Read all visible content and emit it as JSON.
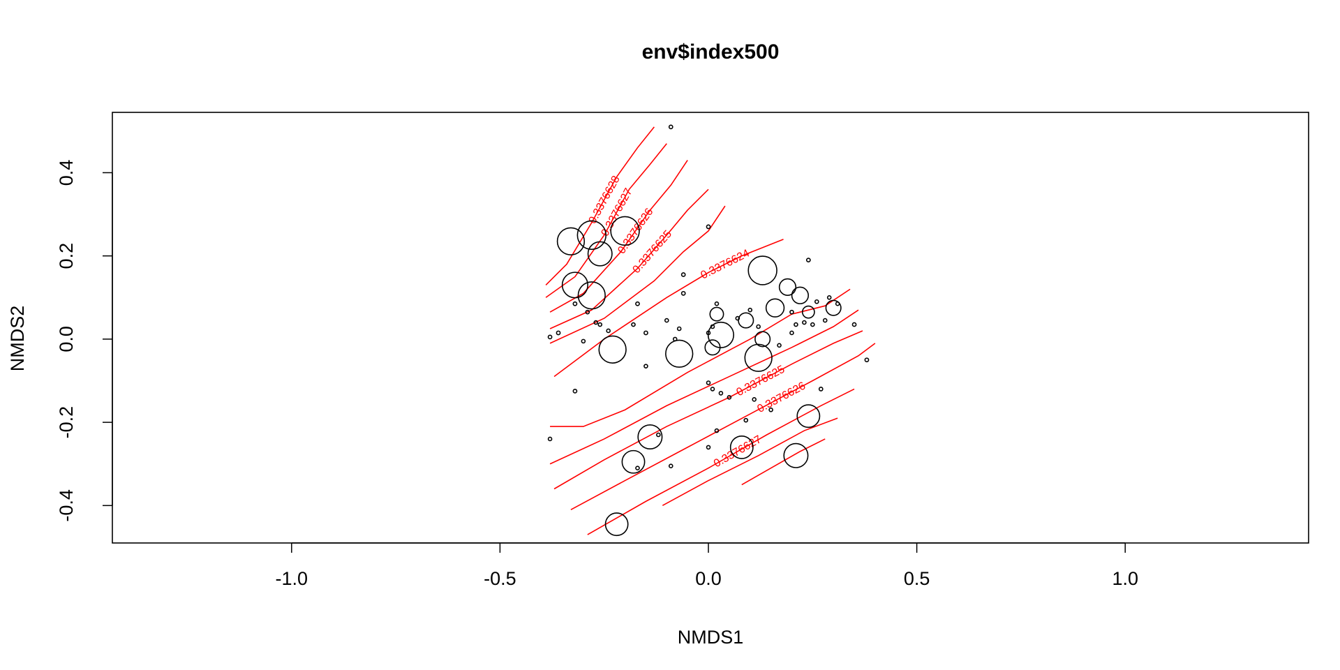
{
  "chart_data": {
    "type": "scatter",
    "title": "env$index500",
    "xlabel": "NMDS1",
    "ylabel": "NMDS2",
    "xlim": [
      -1.43,
      1.44
    ],
    "ylim": [
      -0.49,
      0.545
    ],
    "xticks": [
      -1.0,
      -0.5,
      0.0,
      0.5,
      1.0
    ],
    "xtick_labels": [
      "-1.0",
      "-0.5",
      "0.0",
      "0.5",
      "1.0"
    ],
    "yticks": [
      -0.4,
      -0.2,
      0.0,
      0.2,
      0.4
    ],
    "ytick_labels": [
      "-0.4",
      "-0.2",
      "0.0",
      "0.2",
      "0.4"
    ],
    "grid": false,
    "legend": "none",
    "colors": {
      "points": "#000000",
      "contours": "#ff0000",
      "frame": "#000000"
    },
    "points": [
      {
        "x": -0.33,
        "y": 0.235,
        "size": 0.9
      },
      {
        "x": -0.28,
        "y": 0.25,
        "size": 0.95
      },
      {
        "x": -0.2,
        "y": 0.26,
        "size": 0.95
      },
      {
        "x": -0.26,
        "y": 0.205,
        "size": 0.8
      },
      {
        "x": -0.32,
        "y": 0.13,
        "size": 0.85
      },
      {
        "x": -0.28,
        "y": 0.105,
        "size": 0.9
      },
      {
        "x": -0.23,
        "y": -0.025,
        "size": 0.9
      },
      {
        "x": -0.07,
        "y": -0.035,
        "size": 0.9
      },
      {
        "x": 0.02,
        "y": 0.06,
        "size": 0.45
      },
      {
        "x": 0.03,
        "y": 0.01,
        "size": 0.85
      },
      {
        "x": 0.01,
        "y": -0.02,
        "size": 0.5
      },
      {
        "x": 0.09,
        "y": 0.045,
        "size": 0.5
      },
      {
        "x": 0.13,
        "y": 0.165,
        "size": 0.95
      },
      {
        "x": 0.16,
        "y": 0.075,
        "size": 0.6
      },
      {
        "x": 0.19,
        "y": 0.125,
        "size": 0.55
      },
      {
        "x": 0.22,
        "y": 0.105,
        "size": 0.55
      },
      {
        "x": 0.3,
        "y": 0.075,
        "size": 0.5
      },
      {
        "x": 0.12,
        "y": -0.045,
        "size": 0.9
      },
      {
        "x": 0.13,
        "y": 0.0,
        "size": 0.5
      },
      {
        "x": 0.24,
        "y": 0.065,
        "size": 0.4
      },
      {
        "x": -0.14,
        "y": -0.235,
        "size": 0.8
      },
      {
        "x": -0.18,
        "y": -0.295,
        "size": 0.75
      },
      {
        "x": -0.22,
        "y": -0.445,
        "size": 0.75
      },
      {
        "x": 0.08,
        "y": -0.26,
        "size": 0.75
      },
      {
        "x": 0.21,
        "y": -0.28,
        "size": 0.8
      },
      {
        "x": 0.24,
        "y": -0.185,
        "size": 0.75
      },
      {
        "x": -0.09,
        "y": 0.51,
        "size": 0.12
      },
      {
        "x": 0.0,
        "y": 0.27,
        "size": 0.12
      },
      {
        "x": 0.24,
        "y": 0.19,
        "size": 0.12
      },
      {
        "x": -0.06,
        "y": 0.155,
        "size": 0.12
      },
      {
        "x": -0.06,
        "y": 0.11,
        "size": 0.12
      },
      {
        "x": -0.17,
        "y": 0.085,
        "size": 0.12
      },
      {
        "x": -0.32,
        "y": 0.085,
        "size": 0.12
      },
      {
        "x": -0.29,
        "y": 0.065,
        "size": 0.1
      },
      {
        "x": -0.36,
        "y": 0.015,
        "size": 0.12
      },
      {
        "x": -0.38,
        "y": 0.005,
        "size": 0.12
      },
      {
        "x": -0.26,
        "y": 0.035,
        "size": 0.1
      },
      {
        "x": -0.27,
        "y": 0.04,
        "size": 0.1
      },
      {
        "x": -0.3,
        "y": -0.005,
        "size": 0.08
      },
      {
        "x": -0.24,
        "y": 0.02,
        "size": 0.1
      },
      {
        "x": -0.18,
        "y": 0.035,
        "size": 0.1
      },
      {
        "x": -0.15,
        "y": 0.015,
        "size": 0.12
      },
      {
        "x": -0.1,
        "y": 0.045,
        "size": 0.1
      },
      {
        "x": -0.07,
        "y": 0.025,
        "size": 0.08
      },
      {
        "x": -0.08,
        "y": 0.0,
        "size": 0.1
      },
      {
        "x": -0.15,
        "y": -0.065,
        "size": 0.1
      },
      {
        "x": -0.32,
        "y": -0.125,
        "size": 0.12
      },
      {
        "x": -0.38,
        "y": -0.24,
        "size": 0.06
      },
      {
        "x": 0.02,
        "y": 0.085,
        "size": 0.1
      },
      {
        "x": 0.01,
        "y": 0.03,
        "size": 0.1
      },
      {
        "x": 0.0,
        "y": 0.015,
        "size": 0.08
      },
      {
        "x": 0.1,
        "y": 0.07,
        "size": 0.1
      },
      {
        "x": 0.07,
        "y": 0.05,
        "size": 0.1
      },
      {
        "x": 0.12,
        "y": 0.03,
        "size": 0.1
      },
      {
        "x": 0.17,
        "y": -0.015,
        "size": 0.1
      },
      {
        "x": 0.2,
        "y": 0.015,
        "size": 0.1
      },
      {
        "x": 0.2,
        "y": 0.065,
        "size": 0.1
      },
      {
        "x": 0.21,
        "y": 0.035,
        "size": 0.1
      },
      {
        "x": 0.23,
        "y": 0.04,
        "size": 0.1
      },
      {
        "x": 0.25,
        "y": 0.035,
        "size": 0.1
      },
      {
        "x": 0.26,
        "y": 0.09,
        "size": 0.1
      },
      {
        "x": 0.28,
        "y": 0.045,
        "size": 0.1
      },
      {
        "x": 0.29,
        "y": 0.1,
        "size": 0.1
      },
      {
        "x": 0.31,
        "y": 0.085,
        "size": 0.1
      },
      {
        "x": 0.35,
        "y": 0.035,
        "size": 0.12
      },
      {
        "x": 0.38,
        "y": -0.05,
        "size": 0.12
      },
      {
        "x": 0.27,
        "y": -0.12,
        "size": 0.12
      },
      {
        "x": 0.0,
        "y": -0.105,
        "size": 0.06
      },
      {
        "x": 0.01,
        "y": -0.12,
        "size": 0.06
      },
      {
        "x": 0.03,
        "y": -0.13,
        "size": 0.06
      },
      {
        "x": 0.05,
        "y": -0.14,
        "size": 0.06
      },
      {
        "x": 0.11,
        "y": -0.145,
        "size": 0.06
      },
      {
        "x": 0.15,
        "y": -0.17,
        "size": 0.06
      },
      {
        "x": 0.09,
        "y": -0.195,
        "size": 0.06
      },
      {
        "x": 0.02,
        "y": -0.22,
        "size": 0.06
      },
      {
        "x": -0.12,
        "y": -0.23,
        "size": 0.06
      },
      {
        "x": 0.0,
        "y": -0.26,
        "size": 0.06
      },
      {
        "x": -0.09,
        "y": -0.305,
        "size": 0.06
      },
      {
        "x": -0.17,
        "y": -0.31,
        "size": 0.06
      }
    ],
    "contours": [
      {
        "label": "0.3376628",
        "points": [
          [
            -0.39,
            0.13
          ],
          [
            -0.34,
            0.18
          ],
          [
            -0.28,
            0.28
          ],
          [
            -0.22,
            0.39
          ],
          [
            -0.17,
            0.46
          ],
          [
            -0.13,
            0.51
          ]
        ]
      },
      {
        "label": "0.3376627",
        "points": [
          [
            -0.39,
            0.1
          ],
          [
            -0.32,
            0.15
          ],
          [
            -0.25,
            0.25
          ],
          [
            -0.19,
            0.36
          ],
          [
            -0.14,
            0.42
          ],
          [
            -0.1,
            0.47
          ]
        ]
      },
      {
        "label": "0.3376626",
        "points": [
          [
            -0.38,
            0.065
          ],
          [
            -0.3,
            0.11
          ],
          [
            -0.21,
            0.21
          ],
          [
            -0.14,
            0.31
          ],
          [
            -0.09,
            0.37
          ],
          [
            -0.05,
            0.43
          ]
        ]
      },
      {
        "label": "0.3376625",
        "points": [
          [
            -0.38,
            0.025
          ],
          [
            -0.28,
            0.07
          ],
          [
            -0.17,
            0.17
          ],
          [
            -0.1,
            0.25
          ],
          [
            -0.05,
            0.31
          ],
          [
            0.0,
            0.36
          ]
        ]
      },
      {
        "label": "",
        "points": [
          [
            -0.38,
            -0.01
          ],
          [
            -0.25,
            0.05
          ],
          [
            -0.13,
            0.14
          ],
          [
            -0.06,
            0.21
          ],
          [
            0.0,
            0.26
          ],
          [
            0.04,
            0.32
          ]
        ]
      },
      {
        "label": "0.3376624",
        "points": [
          [
            -0.37,
            -0.09
          ],
          [
            -0.25,
            0.0
          ],
          [
            -0.1,
            0.1
          ],
          [
            0.0,
            0.16
          ],
          [
            0.08,
            0.2
          ],
          [
            0.13,
            0.22
          ],
          [
            0.18,
            0.24
          ]
        ]
      },
      {
        "label": "",
        "points": [
          [
            -0.38,
            -0.21
          ],
          [
            -0.3,
            -0.21
          ],
          [
            -0.2,
            -0.17
          ],
          [
            -0.05,
            -0.08
          ],
          [
            0.1,
            0.0
          ],
          [
            0.2,
            0.06
          ],
          [
            0.28,
            0.08
          ],
          [
            0.34,
            0.12
          ]
        ]
      },
      {
        "label": "",
        "points": [
          [
            -0.38,
            -0.3
          ],
          [
            -0.25,
            -0.24
          ],
          [
            -0.1,
            -0.16
          ],
          [
            0.05,
            -0.09
          ],
          [
            0.2,
            -0.02
          ],
          [
            0.3,
            0.03
          ],
          [
            0.36,
            0.07
          ]
        ]
      },
      {
        "label": "0.3376625",
        "points": [
          [
            -0.37,
            -0.36
          ],
          [
            -0.25,
            -0.29
          ],
          [
            -0.1,
            -0.21
          ],
          [
            0.05,
            -0.14
          ],
          [
            0.2,
            -0.06
          ],
          [
            0.3,
            -0.01
          ],
          [
            0.37,
            0.02
          ]
        ]
      },
      {
        "label": "0.3376626",
        "points": [
          [
            -0.33,
            -0.41
          ],
          [
            -0.2,
            -0.34
          ],
          [
            -0.05,
            -0.26
          ],
          [
            0.1,
            -0.18
          ],
          [
            0.25,
            -0.1
          ],
          [
            0.36,
            -0.04
          ],
          [
            0.4,
            -0.01
          ]
        ]
      },
      {
        "label": "0.3376627",
        "points": [
          [
            -0.29,
            -0.47
          ],
          [
            -0.15,
            -0.39
          ],
          [
            0.0,
            -0.31
          ],
          [
            0.14,
            -0.23
          ],
          [
            0.27,
            -0.16
          ],
          [
            0.35,
            -0.12
          ]
        ]
      },
      {
        "label": "",
        "points": [
          [
            -0.11,
            -0.4
          ],
          [
            0.0,
            -0.34
          ],
          [
            0.12,
            -0.28
          ],
          [
            0.23,
            -0.22
          ],
          [
            0.31,
            -0.19
          ]
        ]
      },
      {
        "label": "",
        "points": [
          [
            0.08,
            -0.35
          ],
          [
            0.15,
            -0.31
          ],
          [
            0.22,
            -0.27
          ],
          [
            0.28,
            -0.24
          ]
        ]
      }
    ]
  }
}
